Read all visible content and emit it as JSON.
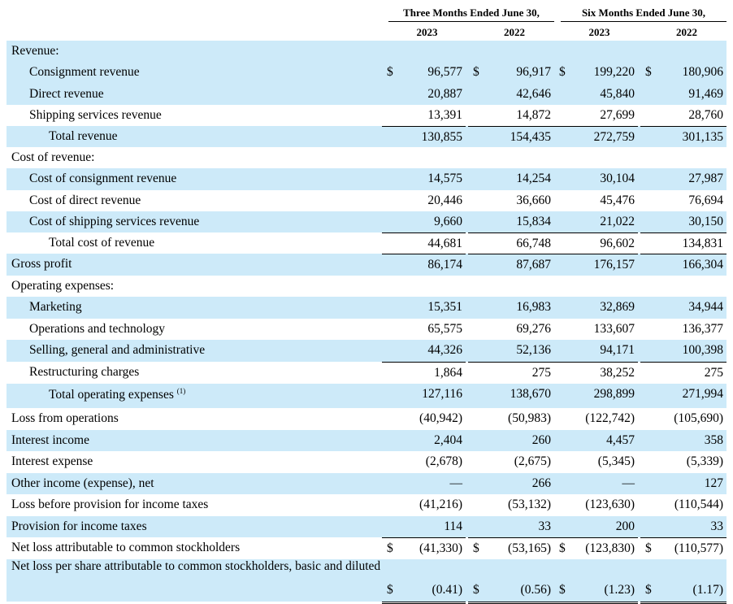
{
  "headers": {
    "three_months": "Three Months Ended June 30,",
    "six_months": "Six Months Ended June 30,",
    "years": [
      "2023",
      "2022",
      "2023",
      "2022"
    ]
  },
  "rows": [
    {
      "label": "Revenue:",
      "values": [
        "",
        "",
        "",
        ""
      ],
      "dollar": false,
      "indent": 0
    },
    {
      "label": "Consignment revenue",
      "values": [
        "96,577",
        "96,917",
        "199,220",
        "180,906"
      ],
      "dollar": true,
      "indent": 1
    },
    {
      "label": "Direct revenue",
      "values": [
        "20,887",
        "42,646",
        "45,840",
        "91,469"
      ],
      "dollar": false,
      "indent": 1
    },
    {
      "label": "Shipping services revenue",
      "values": [
        "13,391",
        "14,872",
        "27,699",
        "28,760"
      ],
      "dollar": false,
      "indent": 1
    },
    {
      "label": "Total revenue",
      "values": [
        "130,855",
        "154,435",
        "272,759",
        "301,135"
      ],
      "dollar": false,
      "indent": 2
    },
    {
      "label": "Cost of revenue:",
      "values": [
        "",
        "",
        "",
        ""
      ],
      "dollar": false,
      "indent": 0
    },
    {
      "label": "Cost of consignment revenue",
      "values": [
        "14,575",
        "14,254",
        "30,104",
        "27,987"
      ],
      "dollar": false,
      "indent": 1
    },
    {
      "label": "Cost of direct revenue",
      "values": [
        "20,446",
        "36,660",
        "45,476",
        "76,694"
      ],
      "dollar": false,
      "indent": 1
    },
    {
      "label": "Cost of shipping services revenue",
      "values": [
        "9,660",
        "15,834",
        "21,022",
        "30,150"
      ],
      "dollar": false,
      "indent": 1
    },
    {
      "label": "Total cost of revenue",
      "values": [
        "44,681",
        "66,748",
        "96,602",
        "134,831"
      ],
      "dollar": false,
      "indent": 2
    },
    {
      "label": "Gross profit",
      "values": [
        "86,174",
        "87,687",
        "176,157",
        "166,304"
      ],
      "dollar": false,
      "indent": 0
    },
    {
      "label": "Operating expenses:",
      "values": [
        "",
        "",
        "",
        ""
      ],
      "dollar": false,
      "indent": 0
    },
    {
      "label": "Marketing",
      "values": [
        "15,351",
        "16,983",
        "32,869",
        "34,944"
      ],
      "dollar": false,
      "indent": 1
    },
    {
      "label": "Operations and technology",
      "values": [
        "65,575",
        "69,276",
        "133,607",
        "136,377"
      ],
      "dollar": false,
      "indent": 1
    },
    {
      "label": "Selling, general and administrative",
      "values": [
        "44,326",
        "52,136",
        "94,171",
        "100,398"
      ],
      "dollar": false,
      "indent": 1
    },
    {
      "label": "Restructuring charges",
      "values": [
        "1,864",
        "275",
        "38,252",
        "275"
      ],
      "dollar": false,
      "indent": 1
    },
    {
      "label": "Total operating expenses",
      "footnote": "(1)",
      "values": [
        "127,116",
        "138,670",
        "298,899",
        "271,994"
      ],
      "dollar": false,
      "indent": 2
    },
    {
      "label": "Loss from operations",
      "values": [
        "(40,942)",
        "(50,983)",
        "(122,742)",
        "(105,690)"
      ],
      "dollar": false,
      "indent": 0
    },
    {
      "label": "Interest income",
      "values": [
        "2,404",
        "260",
        "4,457",
        "358"
      ],
      "dollar": false,
      "indent": 0
    },
    {
      "label": "Interest expense",
      "values": [
        "(2,678)",
        "(2,675)",
        "(5,345)",
        "(5,339)"
      ],
      "dollar": false,
      "indent": 0
    },
    {
      "label": "Other income (expense), net",
      "values": [
        "—",
        "266",
        "—",
        "127"
      ],
      "dollar": false,
      "indent": 0
    },
    {
      "label": "Loss before provision for income taxes",
      "values": [
        "(41,216)",
        "(53,132)",
        "(123,630)",
        "(110,544)"
      ],
      "dollar": false,
      "indent": 0
    },
    {
      "label": "Provision for income taxes",
      "values": [
        "114",
        "33",
        "200",
        "33"
      ],
      "dollar": false,
      "indent": 0
    },
    {
      "label": "Net loss attributable to common stockholders",
      "values": [
        "(41,330)",
        "(53,165)",
        "(123,830)",
        "(110,577)"
      ],
      "dollar": true,
      "indent": 0
    },
    {
      "label": "Net loss per share attributable to common stockholders, basic and diluted",
      "values": [
        "(0.41)",
        "(0.56)",
        "(1.23)",
        "(1.17)"
      ],
      "dollar": true,
      "indent": 0
    }
  ],
  "dollar_sign": "$",
  "colors": {
    "shade": "#cdeaf9"
  }
}
